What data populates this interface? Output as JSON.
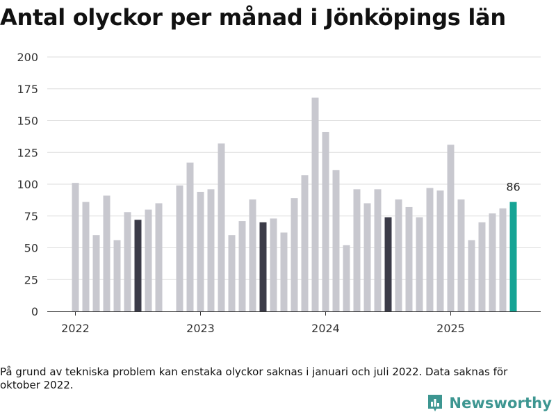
{
  "title": "Antal olyckor per månad i Jönköpings län",
  "footnote": "På grund av tekniska problem kan enstaka olyckor saknas i januari och juli 2022. Data saknas för oktober 2022.",
  "brand": {
    "name": "Newsworthy",
    "logo_icon": "bar-chart-logo-icon"
  },
  "colors": {
    "normal": "#c8c8cf",
    "july": "#3b3b48",
    "latest": "#16a495",
    "grid": "#dedede",
    "axis": "#333333"
  },
  "chart_data": {
    "type": "bar",
    "title": "Antal olyckor per månad i Jönköpings län",
    "xlabel": "",
    "ylabel": "",
    "ylim": [
      0,
      200
    ],
    "yticks": [
      "0",
      "25",
      "50",
      "75",
      "100",
      "125",
      "150",
      "175",
      "200"
    ],
    "xticks": [
      {
        "label": "2022",
        "month_index": 0
      },
      {
        "label": "2023",
        "month_index": 12
      },
      {
        "label": "2024",
        "month_index": 24
      },
      {
        "label": "2025",
        "month_index": 36
      }
    ],
    "series": [
      {
        "values": [
          101,
          86,
          60,
          91,
          56,
          78,
          72,
          80,
          85,
          null,
          99,
          117,
          94,
          96,
          132,
          60,
          71,
          88,
          70,
          73,
          62,
          89,
          107,
          168,
          141,
          111,
          52,
          96,
          85,
          96,
          74,
          88,
          82,
          74,
          97,
          95,
          131,
          88,
          56,
          70,
          77,
          81,
          86
        ]
      }
    ],
    "highlighted_month_indices": [
      6,
      18,
      30
    ],
    "latest_label": "86",
    "grid": true
  }
}
